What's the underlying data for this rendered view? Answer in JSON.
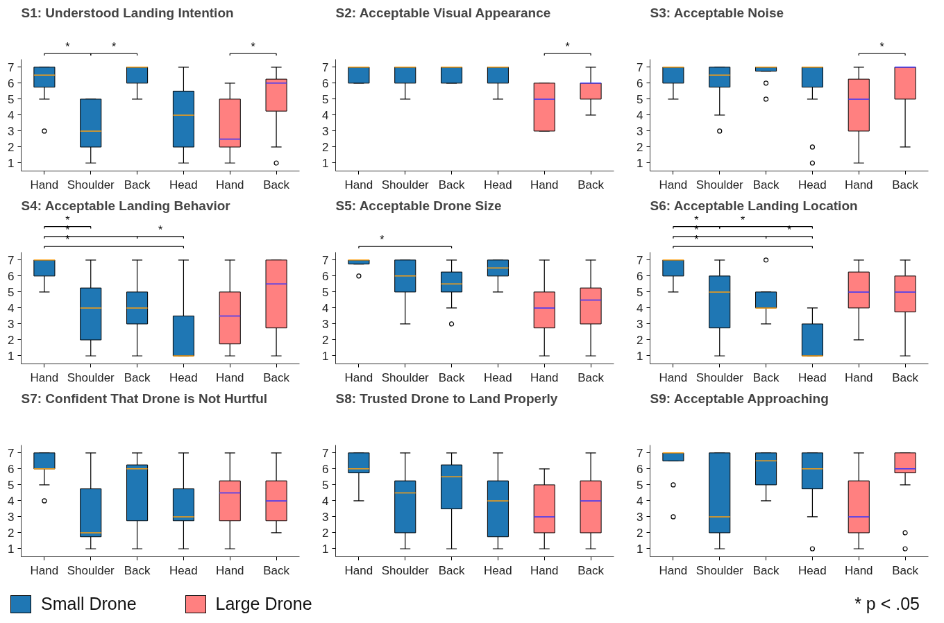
{
  "chart_data": [
    {
      "type": "box",
      "title": "S1: Understood Landing Intention",
      "categories": [
        "Hand",
        "Shoulder",
        "Back",
        "Head",
        "Hand",
        "Back"
      ],
      "ylim": [
        0.5,
        7.5
      ],
      "yticks": [
        1,
        2,
        3,
        4,
        5,
        6,
        7
      ],
      "annotations": [
        "*",
        "*",
        "*"
      ],
      "series": [
        {
          "color": "#1f77b4",
          "boxes": [
            {
              "low": 5,
              "q1": 5.75,
              "median": 6.5,
              "q3": 7,
              "high": 7,
              "outliers": [
                3
              ]
            },
            {
              "low": 1,
              "q1": 2,
              "median": 3,
              "q3": 5,
              "high": 5
            },
            {
              "low": 5,
              "q1": 6,
              "median": 7,
              "q3": 7,
              "high": 7
            },
            {
              "low": 1,
              "q1": 2,
              "median": 4,
              "q3": 5.5,
              "high": 7
            },
            null,
            null
          ]
        },
        {
          "color": "#ff8080",
          "boxes": [
            null,
            null,
            null,
            null,
            {
              "low": 1,
              "q1": 2,
              "median": 2.5,
              "q3": 5,
              "high": 6
            },
            {
              "low": 2,
              "q1": 4.25,
              "median": 6,
              "q3": 6.25,
              "high": 7,
              "outliers": [
                1
              ]
            }
          ]
        }
      ]
    },
    {
      "type": "box",
      "title": "S2: Acceptable Visual Appearance",
      "categories": [
        "Hand",
        "Shoulder",
        "Back",
        "Head",
        "Hand",
        "Back"
      ],
      "ylim": [
        0.5,
        7.5
      ],
      "yticks": [
        1,
        2,
        3,
        4,
        5,
        6,
        7
      ],
      "annotations": [
        "*"
      ],
      "series": [
        {
          "color": "#1f77b4",
          "boxes": [
            {
              "low": 6,
              "q1": 6,
              "median": 7,
              "q3": 7,
              "high": 7
            },
            {
              "low": 5,
              "q1": 6,
              "median": 7,
              "q3": 7,
              "high": 7
            },
            {
              "low": 6,
              "q1": 6,
              "median": 7,
              "q3": 7,
              "high": 7
            },
            {
              "low": 5,
              "q1": 6,
              "median": 7,
              "q3": 7,
              "high": 7
            },
            null,
            null
          ]
        },
        {
          "color": "#ff8080",
          "boxes": [
            null,
            null,
            null,
            null,
            {
              "low": 3,
              "q1": 3,
              "median": 5,
              "q3": 6,
              "high": 6
            },
            {
              "low": 4,
              "q1": 5,
              "median": 6,
              "q3": 6,
              "high": 7
            }
          ]
        }
      ]
    },
    {
      "type": "box",
      "title": "S3: Acceptable Noise",
      "categories": [
        "Hand",
        "Shoulder",
        "Back",
        "Head",
        "Hand",
        "Back"
      ],
      "ylim": [
        0.5,
        7.5
      ],
      "yticks": [
        1,
        2,
        3,
        4,
        5,
        6,
        7
      ],
      "annotations": [
        "*"
      ],
      "series": [
        {
          "color": "#1f77b4",
          "boxes": [
            {
              "low": 5,
              "q1": 6,
              "median": 7,
              "q3": 7,
              "high": 7
            },
            {
              "low": 4,
              "q1": 5.75,
              "median": 6.5,
              "q3": 7,
              "high": 7,
              "outliers": [
                3
              ]
            },
            {
              "low": 6.75,
              "q1": 6.75,
              "median": 7,
              "q3": 7,
              "high": 7,
              "outliers": [
                6,
                5
              ]
            },
            {
              "low": 5,
              "q1": 5.75,
              "median": 7,
              "q3": 7,
              "high": 7,
              "outliers": [
                2,
                1
              ]
            },
            null,
            null
          ]
        },
        {
          "color": "#ff8080",
          "boxes": [
            null,
            null,
            null,
            null,
            {
              "low": 1,
              "q1": 3,
              "median": 5,
              "q3": 6.25,
              "high": 7
            },
            {
              "low": 2,
              "q1": 5,
              "median": 7,
              "q3": 7,
              "high": 7
            }
          ]
        }
      ]
    },
    {
      "type": "box",
      "title": "S4: Acceptable Landing Behavior",
      "categories": [
        "Hand",
        "Shoulder",
        "Back",
        "Head",
        "Hand",
        "Back"
      ],
      "ylim": [
        0.5,
        7.5
      ],
      "yticks": [
        1,
        2,
        3,
        4,
        5,
        6,
        7
      ],
      "annotations": [
        "*",
        "*",
        "*",
        "*"
      ],
      "series": [
        {
          "color": "#1f77b4",
          "boxes": [
            {
              "low": 5,
              "q1": 6,
              "median": 7,
              "q3": 7,
              "high": 7
            },
            {
              "low": 1,
              "q1": 2,
              "median": 4,
              "q3": 5.25,
              "high": 7
            },
            {
              "low": 1,
              "q1": 3,
              "median": 4,
              "q3": 5,
              "high": 7
            },
            {
              "low": 1,
              "q1": 1,
              "median": 1,
              "q3": 3.5,
              "high": 7
            },
            null,
            null
          ]
        },
        {
          "color": "#ff8080",
          "boxes": [
            null,
            null,
            null,
            null,
            {
              "low": 1,
              "q1": 1.75,
              "median": 3.5,
              "q3": 5,
              "high": 7
            },
            {
              "low": 1,
              "q1": 2.75,
              "median": 5.5,
              "q3": 7,
              "high": 7
            }
          ]
        }
      ]
    },
    {
      "type": "box",
      "title": "S5: Acceptable Drone Size",
      "categories": [
        "Hand",
        "Shoulder",
        "Back",
        "Head",
        "Hand",
        "Back"
      ],
      "ylim": [
        0.5,
        7.5
      ],
      "yticks": [
        1,
        2,
        3,
        4,
        5,
        6,
        7
      ],
      "annotations": [
        "*"
      ],
      "series": [
        {
          "color": "#1f77b4",
          "boxes": [
            {
              "low": 6.75,
              "q1": 6.75,
              "median": 7,
              "q3": 7,
              "high": 7,
              "outliers": [
                6
              ]
            },
            {
              "low": 3,
              "q1": 5,
              "median": 6,
              "q3": 7,
              "high": 7
            },
            {
              "low": 4,
              "q1": 5,
              "median": 5.5,
              "q3": 6.25,
              "high": 7,
              "outliers": [
                3
              ]
            },
            {
              "low": 5,
              "q1": 6,
              "median": 6.5,
              "q3": 7,
              "high": 7
            },
            null,
            null
          ]
        },
        {
          "color": "#ff8080",
          "boxes": [
            null,
            null,
            null,
            null,
            {
              "low": 1,
              "q1": 2.75,
              "median": 4,
              "q3": 5,
              "high": 7
            },
            {
              "low": 1,
              "q1": 3,
              "median": 4.5,
              "q3": 5.25,
              "high": 7
            }
          ]
        }
      ]
    },
    {
      "type": "box",
      "title": "S6: Acceptable Landing Location",
      "categories": [
        "Hand",
        "Shoulder",
        "Back",
        "Head",
        "Hand",
        "Back"
      ],
      "ylim": [
        0.5,
        7.5
      ],
      "yticks": [
        1,
        2,
        3,
        4,
        5,
        6,
        7
      ],
      "annotations": [
        "*",
        "*",
        "*",
        "*",
        "*"
      ],
      "series": [
        {
          "color": "#1f77b4",
          "boxes": [
            {
              "low": 5,
              "q1": 6,
              "median": 7,
              "q3": 7,
              "high": 7
            },
            {
              "low": 1,
              "q1": 2.75,
              "median": 5,
              "q3": 6,
              "high": 7
            },
            {
              "low": 3,
              "q1": 4,
              "median": 4,
              "q3": 5,
              "high": 5,
              "outliers": [
                7
              ]
            },
            {
              "low": 1,
              "q1": 1,
              "median": 1,
              "q3": 3,
              "high": 4
            },
            null,
            null
          ]
        },
        {
          "color": "#ff8080",
          "boxes": [
            null,
            null,
            null,
            null,
            {
              "low": 2,
              "q1": 4,
              "median": 5,
              "q3": 6.25,
              "high": 7
            },
            {
              "low": 1,
              "q1": 3.75,
              "median": 5,
              "q3": 6,
              "high": 7
            }
          ]
        }
      ]
    },
    {
      "type": "box",
      "title": "S7: Confident That Drone is Not Hurtful",
      "categories": [
        "Hand",
        "Shoulder",
        "Back",
        "Head",
        "Hand",
        "Back"
      ],
      "ylim": [
        0.5,
        7.5
      ],
      "yticks": [
        1,
        2,
        3,
        4,
        5,
        6,
        7
      ],
      "series": [
        {
          "color": "#1f77b4",
          "boxes": [
            {
              "low": 5,
              "q1": 6,
              "median": 6,
              "q3": 7,
              "high": 7,
              "outliers": [
                4
              ]
            },
            {
              "low": 1,
              "q1": 1.75,
              "median": 2,
              "q3": 4.75,
              "high": 7
            },
            {
              "low": 1,
              "q1": 2.75,
              "median": 6,
              "q3": 6.25,
              "high": 7
            },
            {
              "low": 1,
              "q1": 2.75,
              "median": 3,
              "q3": 4.75,
              "high": 7
            },
            null,
            null
          ]
        },
        {
          "color": "#ff8080",
          "boxes": [
            null,
            null,
            null,
            null,
            {
              "low": 1,
              "q1": 2.75,
              "median": 4.5,
              "q3": 5.25,
              "high": 7
            },
            {
              "low": 2,
              "q1": 2.75,
              "median": 4,
              "q3": 5.25,
              "high": 7
            }
          ]
        }
      ]
    },
    {
      "type": "box",
      "title": "S8: Trusted Drone to Land Properly",
      "categories": [
        "Hand",
        "Shoulder",
        "Back",
        "Head",
        "Hand",
        "Back"
      ],
      "ylim": [
        0.5,
        7.5
      ],
      "yticks": [
        1,
        2,
        3,
        4,
        5,
        6,
        7
      ],
      "series": [
        {
          "color": "#1f77b4",
          "boxes": [
            {
              "low": 4,
              "q1": 5.75,
              "median": 6,
              "q3": 7,
              "high": 7
            },
            {
              "low": 1,
              "q1": 2,
              "median": 4.5,
              "q3": 5.25,
              "high": 7
            },
            {
              "low": 1,
              "q1": 3.5,
              "median": 5.5,
              "q3": 6.25,
              "high": 7
            },
            {
              "low": 1,
              "q1": 1.75,
              "median": 4,
              "q3": 5.25,
              "high": 7
            },
            null,
            null
          ]
        },
        {
          "color": "#ff8080",
          "boxes": [
            null,
            null,
            null,
            null,
            {
              "low": 1,
              "q1": 2,
              "median": 3,
              "q3": 5,
              "high": 6
            },
            {
              "low": 1,
              "q1": 2,
              "median": 4,
              "q3": 5.25,
              "high": 7
            }
          ]
        }
      ]
    },
    {
      "type": "box",
      "title": "S9: Acceptable Approaching",
      "categories": [
        "Hand",
        "Shoulder",
        "Back",
        "Head",
        "Hand",
        "Back"
      ],
      "ylim": [
        0.5,
        7.5
      ],
      "yticks": [
        1,
        2,
        3,
        4,
        5,
        6,
        7
      ],
      "legend": "bottom",
      "annotations": [
        "* p < .05"
      ],
      "series": [
        {
          "name": "Small Drone",
          "color": "#1f77b4",
          "boxes": [
            {
              "low": 6.5,
              "q1": 6.5,
              "median": 7,
              "q3": 7,
              "high": 7,
              "outliers": [
                5,
                3
              ]
            },
            {
              "low": 1,
              "q1": 2,
              "median": 3,
              "q3": 7,
              "high": 7
            },
            {
              "low": 4,
              "q1": 5,
              "median": 6.5,
              "q3": 7,
              "high": 7
            },
            {
              "low": 3,
              "q1": 4.75,
              "median": 6,
              "q3": 7,
              "high": 7,
              "outliers": [
                1
              ]
            },
            null,
            null
          ]
        },
        {
          "name": "Large Drone",
          "color": "#ff8080",
          "boxes": [
            null,
            null,
            null,
            null,
            {
              "low": 1,
              "q1": 2,
              "median": 3,
              "q3": 5.25,
              "high": 7
            },
            {
              "low": 5,
              "q1": 5.75,
              "median": 6,
              "q3": 7,
              "high": 7,
              "outliers": [
                2,
                1
              ]
            }
          ]
        }
      ]
    }
  ]
}
